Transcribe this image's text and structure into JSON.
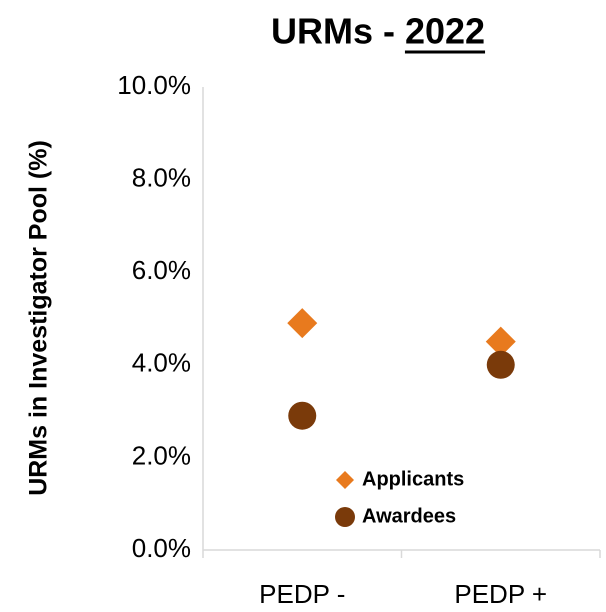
{
  "chart_data": {
    "type": "scatter",
    "title": "URMs - 2022",
    "y_label": "URMs in Investigator Pool (%)",
    "categories": [
      "PEDP -",
      "PEDP +"
    ],
    "series": [
      {
        "name": "Applicants",
        "color": "#e87a1e",
        "marker": "diamond",
        "values": [
          4.9,
          4.5
        ]
      },
      {
        "name": "Awardees",
        "color": "#7a3a0a",
        "marker": "circle",
        "values": [
          2.9,
          4.0
        ]
      }
    ],
    "ylim": [
      0,
      10
    ],
    "yticks": [
      {
        "value": 0,
        "label": "0.0%"
      },
      {
        "value": 2,
        "label": "2.0%"
      },
      {
        "value": 4,
        "label": "4.0%"
      },
      {
        "value": 6,
        "label": "6.0%"
      },
      {
        "value": 8,
        "label": "8.0%"
      },
      {
        "value": 10,
        "label": "10.0%"
      }
    ],
    "legend": "inside-bottom",
    "grid": false
  }
}
